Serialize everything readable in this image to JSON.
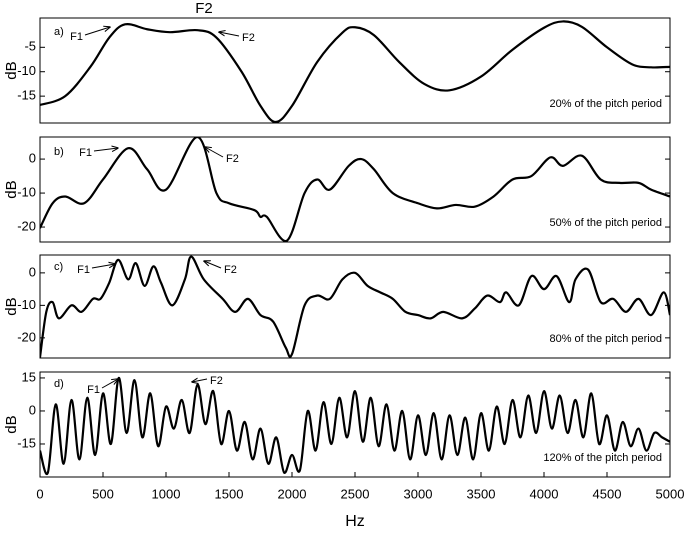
{
  "chart_data": [
    {
      "type": "line",
      "title": "F2",
      "panel_label": "a)",
      "annotations": [
        "F1",
        "F2"
      ],
      "note": "20% of the pitch period",
      "ylabel": "dB",
      "color": "#000000",
      "x": [
        0,
        200,
        400,
        550,
        675,
        850,
        1030,
        1250,
        1400,
        1600,
        1750,
        1870,
        2000,
        2200,
        2400,
        2500,
        2650,
        2850,
        3050,
        3250,
        3500,
        3750,
        4000,
        4150,
        4300,
        4500,
        4700,
        4850,
        5000
      ],
      "values": [
        -16.8,
        -15,
        -9,
        -3,
        -0.3,
        -1.3,
        -1.9,
        -1.5,
        -3,
        -10,
        -17,
        -20.3,
        -17,
        -8,
        -2,
        -0.9,
        -2.5,
        -8,
        -12.5,
        -13.8,
        -11,
        -5.5,
        -1,
        0.3,
        -0.8,
        -5,
        -8.5,
        -9.1,
        -9
      ],
      "xlim": [
        0,
        5000
      ],
      "ylim": [
        -20.5,
        1
      ],
      "yticks": [
        -15,
        -10,
        -5
      ]
    },
    {
      "type": "line",
      "panel_label": "b)",
      "annotations": [
        "F1",
        "F2"
      ],
      "note": "50% of the pitch period",
      "ylabel": "dB",
      "color": "#000000",
      "x": [
        0,
        100,
        200,
        350,
        500,
        700,
        850,
        1000,
        1250,
        1400,
        1500,
        1700,
        1750,
        1800,
        1960,
        2100,
        2200,
        2300,
        2450,
        2550,
        2650,
        2800,
        3000,
        3150,
        3300,
        3450,
        3600,
        3750,
        3900,
        4050,
        4150,
        4300,
        4450,
        4600,
        4750,
        4850,
        5000
      ],
      "values": [
        -20.3,
        -13,
        -11,
        -13,
        -6,
        3.2,
        -3,
        -9,
        6.5,
        -10,
        -13,
        -15,
        -17,
        -17,
        -24,
        -10,
        -6,
        -9,
        -2,
        0,
        -3,
        -10,
        -13,
        -14.5,
        -13.5,
        -14,
        -11,
        -6,
        -5,
        0.5,
        -2,
        1,
        -6,
        -7,
        -7,
        -9,
        -11
      ],
      "xlim": [
        0,
        5000
      ],
      "ylim": [
        -24.4,
        6.5
      ],
      "yticks": [
        -20,
        -10,
        0
      ]
    },
    {
      "type": "line",
      "panel_label": "c)",
      "annotations": [
        "F1",
        "F2"
      ],
      "note": "80% of the pitch period",
      "ylabel": "dB",
      "color": "#000000",
      "x": [
        0,
        50,
        100,
        150,
        250,
        330,
        420,
        480,
        550,
        620,
        700,
        760,
        830,
        900,
        960,
        1050,
        1150,
        1200,
        1300,
        1450,
        1550,
        1650,
        1750,
        1850,
        1950,
        2000,
        2100,
        2200,
        2300,
        2400,
        2500,
        2600,
        2700,
        2800,
        2900,
        3000,
        3100,
        3200,
        3350,
        3450,
        3550,
        3650,
        3700,
        3800,
        3900,
        4000,
        4100,
        4200,
        4250,
        4350,
        4450,
        4550,
        4650,
        4750,
        4850,
        4950,
        5000
      ],
      "values": [
        -26,
        -12,
        -9,
        -14,
        -10,
        -12,
        -8,
        -8,
        -3,
        4,
        -2,
        3,
        -4,
        2,
        -3,
        -10,
        -2,
        5,
        -2,
        -8,
        -12,
        -8,
        -13,
        -15,
        -23,
        -25,
        -10,
        -7,
        -8,
        -2,
        0,
        -4,
        -6,
        -8,
        -12,
        -13,
        -14,
        -12,
        -14,
        -11,
        -7,
        -9,
        -6,
        -10,
        -1,
        -5,
        -1,
        -9,
        -2,
        1,
        -9,
        -8,
        -12,
        -8,
        -13,
        -6,
        -13
      ],
      "xlim": [
        0,
        5000
      ],
      "ylim": [
        -26.2,
        5.5
      ],
      "yticks": [
        -20,
        -10,
        0
      ]
    },
    {
      "type": "line",
      "panel_label": "d)",
      "annotations": [
        "F1",
        "F2"
      ],
      "note": "120% of the pitch period",
      "ylabel": "dB",
      "xlabel": "Hz",
      "color": "#000000",
      "x": [
        0,
        62.5,
        125,
        187.5,
        250,
        312.5,
        375,
        437.5,
        500,
        562.5,
        625,
        687.5,
        750,
        812.5,
        875,
        937.5,
        1000,
        1062.5,
        1125,
        1187.5,
        1250,
        1312.5,
        1375,
        1437.5,
        1500,
        1562.5,
        1625,
        1687.5,
        1750,
        1812.5,
        1875,
        1937.5,
        2000,
        2062.5,
        2125,
        2187.5,
        2250,
        2312.5,
        2375,
        2437.5,
        2500,
        2562.5,
        2625,
        2687.5,
        2750,
        2812.5,
        2875,
        2937.5,
        3000,
        3062.5,
        3125,
        3187.5,
        3250,
        3312.5,
        3375,
        3437.5,
        3500,
        3562.5,
        3625,
        3687.5,
        3750,
        3812.5,
        3875,
        3937.5,
        4000,
        4062.5,
        4125,
        4187.5,
        4250,
        4312.5,
        4375,
        4437.5,
        4500,
        4562.5,
        4625,
        4687.5,
        4750,
        4812.5,
        4875,
        4937.5,
        5000
      ],
      "values": [
        -18,
        -28,
        3,
        -24,
        5,
        -22,
        6,
        -20,
        8,
        -15,
        15,
        -10,
        14,
        -12,
        8,
        -16,
        2,
        -8,
        5,
        -10,
        12,
        -6,
        9,
        -15,
        0,
        -18,
        -5,
        -22,
        -8,
        -24,
        -12,
        -28,
        -20,
        -27,
        0,
        -18,
        4,
        -15,
        6,
        -12,
        9,
        -14,
        6,
        -16,
        3,
        -18,
        0,
        -22,
        -2,
        -20,
        -1,
        -22,
        -2,
        -20,
        -3,
        -22,
        -1,
        -18,
        2,
        -15,
        5,
        -12,
        7,
        -10,
        9,
        -8,
        7,
        -10,
        5,
        -12,
        8,
        -15,
        -2,
        -18,
        -5,
        -16,
        -8,
        -18,
        -10,
        -12,
        -14
      ],
      "xlim": [
        0,
        5000
      ],
      "ylim": [
        -30,
        17.7
      ],
      "yticks": [
        -15,
        0,
        15
      ],
      "xticks": [
        0,
        500,
        1000,
        1500,
        2000,
        2500,
        3000,
        3500,
        4000,
        4500,
        5000
      ]
    }
  ]
}
